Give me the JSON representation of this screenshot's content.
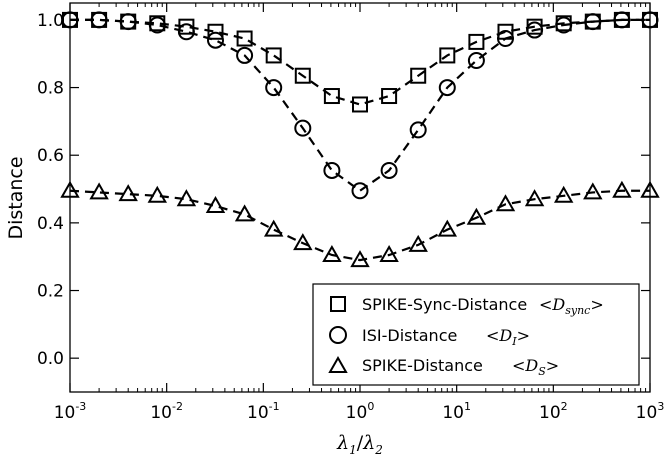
{
  "chart_data": {
    "type": "line",
    "xscale": "log",
    "xlim": [
      0.001,
      1000
    ],
    "ylim": [
      -0.1,
      1.05
    ],
    "xlabel_parts": {
      "a": "λ",
      "a_sub": "1",
      "sep": "/",
      "b": "λ",
      "b_sub": "2"
    },
    "ylabel": "Distance",
    "x_ticks": [
      {
        "base": "10",
        "exp": "-3",
        "value": 0.001
      },
      {
        "base": "10",
        "exp": "-2",
        "value": 0.01
      },
      {
        "base": "10",
        "exp": "-1",
        "value": 0.1
      },
      {
        "base": "10",
        "exp": "0",
        "value": 1
      },
      {
        "base": "10",
        "exp": "1",
        "value": 10
      },
      {
        "base": "10",
        "exp": "2",
        "value": 100
      },
      {
        "base": "10",
        "exp": "3",
        "value": 1000
      }
    ],
    "y_ticks": [
      {
        "label": "0.0",
        "value": 0.0
      },
      {
        "label": "0.2",
        "value": 0.2
      },
      {
        "label": "0.4",
        "value": 0.4
      },
      {
        "label": "0.6",
        "value": 0.6
      },
      {
        "label": "0.8",
        "value": 0.8
      },
      {
        "label": "1.0",
        "value": 1.0
      }
    ],
    "grid": false,
    "legend_position": "lower-right",
    "line_style": "dashed",
    "color": "#000000",
    "x": [
      0.001,
      0.002,
      0.004,
      0.008,
      0.016,
      0.032,
      0.064,
      0.128,
      0.256,
      0.512,
      1.0,
      2.0,
      4.0,
      8.0,
      16.0,
      32.0,
      64.0,
      128.0,
      256.0,
      512.0,
      1000.0
    ],
    "series": [
      {
        "name": "SPIKE-Sync-Distance",
        "marker": "square",
        "legend_math": {
          "open": "<",
          "var": "D",
          "sub": "sync",
          "close": ">"
        },
        "values": [
          1.0,
          1.0,
          0.995,
          0.99,
          0.98,
          0.965,
          0.945,
          0.895,
          0.835,
          0.775,
          0.75,
          0.775,
          0.835,
          0.895,
          0.935,
          0.965,
          0.98,
          0.99,
          0.995,
          1.0,
          1.0
        ]
      },
      {
        "name": "ISI-Distance",
        "marker": "circle",
        "legend_math": {
          "open": "<",
          "var": "D",
          "sub": "I",
          "close": ">"
        },
        "values": [
          1.0,
          1.0,
          0.995,
          0.985,
          0.965,
          0.94,
          0.895,
          0.8,
          0.68,
          0.555,
          0.495,
          0.555,
          0.675,
          0.8,
          0.88,
          0.945,
          0.97,
          0.985,
          0.995,
          1.0,
          1.0
        ]
      },
      {
        "name": "SPIKE-Distance",
        "marker": "triangle",
        "legend_math": {
          "open": "<",
          "var": "D",
          "sub": "S",
          "close": ">"
        },
        "values": [
          0.495,
          0.49,
          0.485,
          0.48,
          0.47,
          0.45,
          0.425,
          0.38,
          0.34,
          0.305,
          0.29,
          0.305,
          0.335,
          0.38,
          0.415,
          0.455,
          0.47,
          0.48,
          0.49,
          0.495,
          0.495
        ]
      }
    ]
  }
}
